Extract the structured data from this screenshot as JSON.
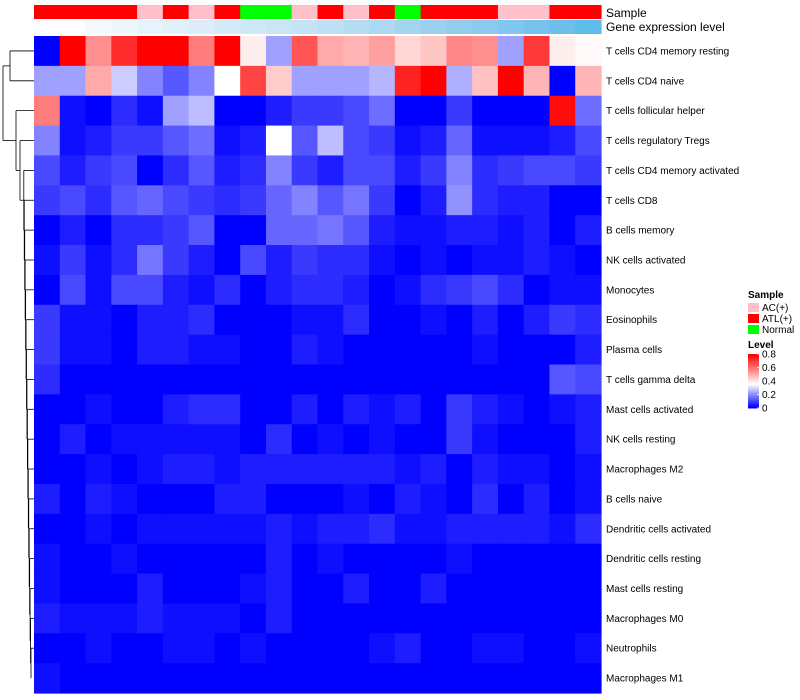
{
  "chart_data": {
    "type": "heatmap",
    "annotation_labels": {
      "sample": "Sample",
      "gene_expression": "Gene expression level"
    },
    "sample_groups": [
      "ATL(+)",
      "ATL(+)",
      "ATL(+)",
      "ATL(+)",
      "AC(+)",
      "ATL(+)",
      "AC(+)",
      "ATL(+)",
      "Normal",
      "Normal",
      "AC(+)",
      "ATL(+)",
      "AC(+)",
      "ATL(+)",
      "Normal",
      "ATL(+)",
      "ATL(+)",
      "ATL(+)",
      "AC(+)",
      "AC(+)",
      "ATL(+)",
      "ATL(+)"
    ],
    "gene_expression_colors": [
      "#fbfdfe",
      "#fbfdfe",
      "#f3f9fd",
      "#eef7fc",
      "#e6f3fb",
      "#e1f1fa",
      "#dcedf9",
      "#d3ebf8",
      "#cfe8f6",
      "#c9e5f6",
      "#c4e3f5",
      "#bde0f4",
      "#b5ddf2",
      "#acd9f1",
      "#a4d5ef",
      "#9bd1ee",
      "#92cdee",
      "#8acbef",
      "#7fc7ee",
      "#73c3ec",
      "#6bbfeb",
      "#5cbdea"
    ],
    "rows": [
      "T cells CD4 memory resting",
      "T cells CD4 naive",
      "T cells follicular helper",
      "T cells regulatory  Tregs",
      "T cells CD4 memory activated",
      "T cells CD8",
      "B cells memory",
      "NK cells activated",
      "Monocytes",
      "Eosinophils",
      "Plasma cells",
      "T cells gamma delta",
      "Mast cells activated",
      "NK cells resting",
      "Macrophages M2",
      "B cells naive",
      "Dendritic cells activated",
      "Dendritic cells resting",
      "Mast cells resting",
      "Macrophages M0",
      "Neutrophils",
      "Macrophages M1"
    ],
    "values": [
      [
        0.0,
        0.8,
        0.55,
        0.72,
        0.8,
        0.8,
        0.58,
        0.8,
        0.38,
        0.22,
        0.65,
        0.5,
        0.48,
        0.52,
        0.42,
        0.45,
        0.56,
        0.55,
        0.22,
        0.7,
        0.38,
        0.36
      ],
      [
        0.22,
        0.22,
        0.5,
        0.28,
        0.18,
        0.12,
        0.18,
        0.35,
        0.68,
        0.44,
        0.22,
        0.22,
        0.22,
        0.25,
        0.74,
        0.8,
        0.24,
        0.46,
        0.8,
        0.48,
        0.0,
        0.48
      ],
      [
        0.58,
        0.02,
        0.0,
        0.06,
        0.02,
        0.22,
        0.26,
        0.0,
        0.0,
        0.04,
        0.08,
        0.08,
        0.1,
        0.15,
        0.0,
        0.0,
        0.08,
        0.0,
        0.0,
        0.0,
        0.78,
        0.15
      ],
      [
        0.18,
        0.02,
        0.04,
        0.08,
        0.08,
        0.12,
        0.15,
        0.02,
        0.04,
        0.35,
        0.12,
        0.26,
        0.1,
        0.08,
        0.02,
        0.04,
        0.14,
        0.02,
        0.02,
        0.02,
        0.04,
        0.1
      ],
      [
        0.1,
        0.04,
        0.08,
        0.1,
        0.0,
        0.06,
        0.12,
        0.04,
        0.06,
        0.18,
        0.08,
        0.04,
        0.1,
        0.1,
        0.04,
        0.08,
        0.18,
        0.06,
        0.08,
        0.1,
        0.1,
        0.08
      ],
      [
        0.08,
        0.1,
        0.06,
        0.12,
        0.14,
        0.1,
        0.08,
        0.06,
        0.08,
        0.14,
        0.18,
        0.12,
        0.16,
        0.08,
        0.0,
        0.04,
        0.2,
        0.06,
        0.04,
        0.04,
        0.0,
        0.0
      ],
      [
        0.0,
        0.04,
        0.0,
        0.06,
        0.06,
        0.08,
        0.12,
        0.0,
        0.0,
        0.14,
        0.14,
        0.16,
        0.12,
        0.04,
        0.02,
        0.02,
        0.04,
        0.04,
        0.02,
        0.04,
        0.0,
        0.04
      ],
      [
        0.02,
        0.08,
        0.02,
        0.06,
        0.16,
        0.08,
        0.04,
        0.0,
        0.1,
        0.04,
        0.08,
        0.06,
        0.06,
        0.02,
        0.0,
        0.02,
        0.0,
        0.02,
        0.02,
        0.04,
        0.02,
        0.0
      ],
      [
        0.0,
        0.1,
        0.02,
        0.1,
        0.1,
        0.04,
        0.02,
        0.06,
        0.0,
        0.04,
        0.06,
        0.06,
        0.04,
        0.0,
        0.02,
        0.06,
        0.08,
        0.1,
        0.06,
        0.0,
        0.02,
        0.02
      ],
      [
        0.08,
        0.02,
        0.02,
        0.0,
        0.04,
        0.04,
        0.06,
        0.0,
        0.0,
        0.0,
        0.02,
        0.02,
        0.06,
        0.0,
        0.0,
        0.02,
        0.0,
        0.04,
        0.0,
        0.04,
        0.08,
        0.06
      ],
      [
        0.08,
        0.02,
        0.02,
        0.0,
        0.04,
        0.04,
        0.02,
        0.02,
        0.0,
        0.0,
        0.04,
        0.02,
        0.0,
        0.0,
        0.0,
        0.0,
        0.0,
        0.02,
        0.0,
        0.0,
        0.0,
        0.04
      ],
      [
        0.06,
        0.0,
        0.0,
        0.0,
        0.0,
        0.0,
        0.0,
        0.0,
        0.0,
        0.0,
        0.0,
        0.0,
        0.0,
        0.0,
        0.0,
        0.0,
        0.0,
        0.0,
        0.0,
        0.0,
        0.12,
        0.1
      ],
      [
        0.0,
        0.0,
        0.02,
        0.0,
        0.0,
        0.04,
        0.06,
        0.06,
        0.0,
        0.0,
        0.04,
        0.0,
        0.04,
        0.02,
        0.04,
        0.0,
        0.08,
        0.04,
        0.02,
        0.0,
        0.02,
        0.04
      ],
      [
        0.0,
        0.04,
        0.0,
        0.02,
        0.02,
        0.02,
        0.02,
        0.02,
        0.0,
        0.06,
        0.0,
        0.02,
        0.0,
        0.02,
        0.0,
        0.0,
        0.08,
        0.02,
        0.0,
        0.0,
        0.0,
        0.04
      ],
      [
        0.0,
        0.0,
        0.02,
        0.0,
        0.02,
        0.04,
        0.04,
        0.02,
        0.04,
        0.04,
        0.04,
        0.04,
        0.04,
        0.04,
        0.02,
        0.04,
        0.0,
        0.04,
        0.02,
        0.02,
        0.0,
        0.02
      ],
      [
        0.04,
        0.0,
        0.04,
        0.02,
        0.0,
        0.0,
        0.0,
        0.04,
        0.04,
        0.0,
        0.0,
        0.0,
        0.02,
        0.0,
        0.04,
        0.02,
        0.0,
        0.06,
        0.0,
        0.04,
        0.0,
        0.02
      ],
      [
        0.0,
        0.0,
        0.02,
        0.0,
        0.02,
        0.02,
        0.02,
        0.02,
        0.02,
        0.04,
        0.02,
        0.04,
        0.04,
        0.06,
        0.02,
        0.02,
        0.04,
        0.04,
        0.04,
        0.04,
        0.02,
        0.06
      ],
      [
        0.02,
        0.0,
        0.0,
        0.02,
        0.0,
        0.0,
        0.0,
        0.0,
        0.0,
        0.04,
        0.0,
        0.02,
        0.0,
        0.0,
        0.0,
        0.0,
        0.02,
        0.0,
        0.0,
        0.0,
        0.0,
        0.0
      ],
      [
        0.02,
        0.0,
        0.0,
        0.0,
        0.04,
        0.0,
        0.0,
        0.0,
        0.02,
        0.04,
        0.0,
        0.0,
        0.04,
        0.0,
        0.0,
        0.04,
        0.0,
        0.0,
        0.0,
        0.0,
        0.0,
        0.0
      ],
      [
        0.04,
        0.02,
        0.02,
        0.02,
        0.04,
        0.02,
        0.02,
        0.02,
        0.0,
        0.04,
        0.0,
        0.0,
        0.0,
        0.0,
        0.0,
        0.0,
        0.0,
        0.0,
        0.0,
        0.0,
        0.0,
        0.0
      ],
      [
        0.0,
        0.0,
        0.02,
        0.0,
        0.0,
        0.02,
        0.02,
        0.0,
        0.02,
        0.0,
        0.0,
        0.0,
        0.0,
        0.02,
        0.04,
        0.0,
        0.0,
        0.02,
        0.02,
        0.0,
        0.0,
        0.02
      ],
      [
        0.02,
        0.0,
        0.0,
        0.0,
        0.0,
        0.0,
        0.0,
        0.0,
        0.0,
        0.0,
        0.0,
        0.0,
        0.0,
        0.0,
        0.0,
        0.0,
        0.0,
        0.0,
        0.0,
        0.0,
        0.0,
        0.0
      ]
    ],
    "color_scale": {
      "min": 0,
      "max": 0.8,
      "low": "#0000ff",
      "mid": "#ffffff",
      "high": "#ff0000",
      "mid_value": 0.35
    },
    "sample_colors": {
      "AC(+)": "#ffc0cb",
      "ATL(+)": "#ff0000",
      "Normal": "#00ff00"
    },
    "legend": {
      "sample_title": "Sample",
      "sample_entries": [
        "AC(+)",
        "ATL(+)",
        "Normal"
      ],
      "level_title": "Level",
      "level_ticks": [
        "0.8",
        "0.6",
        "0.4",
        "0.2",
        "0"
      ],
      "level_tick_values": [
        0.8,
        0.6,
        0.4,
        0.2,
        0
      ]
    }
  }
}
